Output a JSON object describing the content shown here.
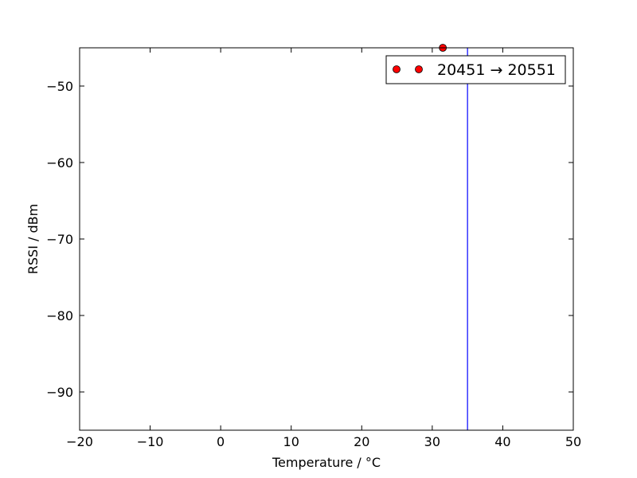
{
  "chart_data": {
    "type": "scatter",
    "title": "",
    "xlabel": "Temperature / °C",
    "ylabel": "RSSI / dBm",
    "xlim": [
      -20,
      50
    ],
    "ylim": [
      -95,
      -45
    ],
    "xticks": [
      -20,
      -10,
      0,
      10,
      20,
      30,
      40,
      50
    ],
    "yticks": [
      -90,
      -80,
      -70,
      -60,
      -50
    ],
    "xtick_labels": [
      "−20",
      "−10",
      "0",
      "10",
      "20",
      "30",
      "40",
      "50"
    ],
    "ytick_labels": [
      "−90",
      "−80",
      "−70",
      "−60",
      "−50"
    ],
    "grid": false,
    "legend": {
      "placement": "top-right",
      "entries": [
        "20451 → 20551"
      ]
    },
    "series": [
      {
        "name": "20451 → 20551",
        "marker": "circle",
        "color": "#ff0000",
        "edge_color": "#000000",
        "points": [
          {
            "x": 31.5,
            "y": -45
          }
        ]
      }
    ],
    "reference_lines": [
      {
        "orientation": "vertical",
        "x": 35,
        "color": "#0000ff"
      }
    ]
  }
}
